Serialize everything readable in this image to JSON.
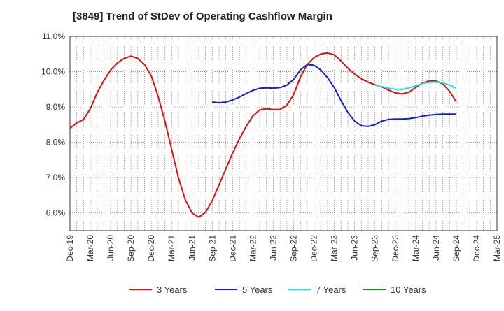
{
  "chart_data": {
    "type": "line",
    "title": "[3849]  Trend of StDev of Operating Cashflow Margin",
    "xlabel": "",
    "ylabel": "",
    "x_ticks": [
      "Dec-19",
      "Mar-20",
      "Jun-20",
      "Sep-20",
      "Dec-20",
      "Mar-21",
      "Jun-21",
      "Sep-21",
      "Dec-21",
      "Mar-22",
      "Jun-22",
      "Sep-22",
      "Dec-22",
      "Mar-23",
      "Jun-23",
      "Sep-23",
      "Dec-23",
      "Mar-24",
      "Jun-24",
      "Sep-24",
      "Dec-24",
      "Mar-25"
    ],
    "y_ticks": [
      "6.0%",
      "7.0%",
      "8.0%",
      "9.0%",
      "10.0%",
      "11.0%"
    ],
    "ylim": [
      5.5,
      11.0
    ],
    "grid": true,
    "legend_position": "bottom",
    "series": [
      {
        "name": "3 Years",
        "color": "#dd1111",
        "points": [
          [
            "Dec-19",
            8.4
          ],
          [
            "Jan-20",
            8.55
          ],
          [
            "Feb-20",
            8.65
          ],
          [
            "Mar-20",
            8.95
          ],
          [
            "Apr-20",
            9.4
          ],
          [
            "May-20",
            9.75
          ],
          [
            "Jun-20",
            10.05
          ],
          [
            "Jul-20",
            10.25
          ],
          [
            "Aug-20",
            10.38
          ],
          [
            "Sep-20",
            10.44
          ],
          [
            "Oct-20",
            10.38
          ],
          [
            "Nov-20",
            10.2
          ],
          [
            "Dec-20",
            9.88
          ],
          [
            "Jan-21",
            9.3
          ],
          [
            "Feb-21",
            8.6
          ],
          [
            "Mar-21",
            7.8
          ],
          [
            "Apr-21",
            7.0
          ],
          [
            "May-21",
            6.38
          ],
          [
            "Jun-21",
            6.0
          ],
          [
            "Jul-21",
            5.88
          ],
          [
            "Aug-21",
            6.02
          ],
          [
            "Sep-21",
            6.35
          ],
          [
            "Oct-21",
            6.8
          ],
          [
            "Nov-21",
            7.25
          ],
          [
            "Dec-21",
            7.7
          ],
          [
            "Jan-22",
            8.1
          ],
          [
            "Feb-22",
            8.45
          ],
          [
            "Mar-22",
            8.75
          ],
          [
            "Apr-22",
            8.92
          ],
          [
            "May-22",
            8.95
          ],
          [
            "Jun-22",
            8.93
          ],
          [
            "Jul-22",
            8.93
          ],
          [
            "Aug-22",
            9.05
          ],
          [
            "Sep-22",
            9.35
          ],
          [
            "Oct-22",
            9.85
          ],
          [
            "Nov-22",
            10.2
          ],
          [
            "Dec-22",
            10.4
          ],
          [
            "Jan-23",
            10.5
          ],
          [
            "Feb-23",
            10.53
          ],
          [
            "Mar-23",
            10.48
          ],
          [
            "Apr-23",
            10.3
          ],
          [
            "May-23",
            10.1
          ],
          [
            "Jun-23",
            9.93
          ],
          [
            "Jul-23",
            9.8
          ],
          [
            "Aug-23",
            9.7
          ],
          [
            "Sep-23",
            9.63
          ],
          [
            "Oct-23",
            9.57
          ],
          [
            "Nov-23",
            9.48
          ],
          [
            "Dec-23",
            9.4
          ],
          [
            "Jan-24",
            9.37
          ],
          [
            "Feb-24",
            9.42
          ],
          [
            "Mar-24",
            9.55
          ],
          [
            "Apr-24",
            9.68
          ],
          [
            "May-24",
            9.74
          ],
          [
            "Jun-24",
            9.74
          ],
          [
            "Jul-24",
            9.65
          ],
          [
            "Aug-24",
            9.45
          ],
          [
            "Sep-24",
            9.15
          ]
        ]
      },
      {
        "name": "5 Years",
        "color": "#1122cc",
        "points": [
          [
            "Sep-21",
            9.14
          ],
          [
            "Oct-21",
            9.12
          ],
          [
            "Nov-21",
            9.14
          ],
          [
            "Dec-21",
            9.2
          ],
          [
            "Jan-22",
            9.28
          ],
          [
            "Feb-22",
            9.38
          ],
          [
            "Mar-22",
            9.47
          ],
          [
            "Apr-22",
            9.53
          ],
          [
            "May-22",
            9.54
          ],
          [
            "Jun-22",
            9.53
          ],
          [
            "Jul-22",
            9.55
          ],
          [
            "Aug-22",
            9.62
          ],
          [
            "Sep-22",
            9.78
          ],
          [
            "Oct-22",
            10.05
          ],
          [
            "Nov-22",
            10.2
          ],
          [
            "Dec-22",
            10.18
          ],
          [
            "Jan-23",
            10.05
          ],
          [
            "Feb-23",
            9.83
          ],
          [
            "Mar-23",
            9.55
          ],
          [
            "Apr-23",
            9.18
          ],
          [
            "May-23",
            8.85
          ],
          [
            "Jun-23",
            8.6
          ],
          [
            "Jul-23",
            8.47
          ],
          [
            "Aug-23",
            8.45
          ],
          [
            "Sep-23",
            8.5
          ],
          [
            "Oct-23",
            8.6
          ],
          [
            "Nov-23",
            8.65
          ],
          [
            "Dec-23",
            8.66
          ],
          [
            "Jan-24",
            8.66
          ],
          [
            "Feb-24",
            8.67
          ],
          [
            "Mar-24",
            8.7
          ],
          [
            "Apr-24",
            8.74
          ],
          [
            "May-24",
            8.77
          ],
          [
            "Jun-24",
            8.79
          ],
          [
            "Jul-24",
            8.8
          ],
          [
            "Aug-24",
            8.8
          ],
          [
            "Sep-24",
            8.8
          ]
        ]
      },
      {
        "name": "7 Years",
        "color": "#22dddd",
        "points": [
          [
            "Sep-23",
            9.62
          ],
          [
            "Oct-23",
            9.58
          ],
          [
            "Nov-23",
            9.53
          ],
          [
            "Dec-23",
            9.5
          ],
          [
            "Jan-24",
            9.5
          ],
          [
            "Feb-24",
            9.54
          ],
          [
            "Mar-24",
            9.6
          ],
          [
            "Apr-24",
            9.66
          ],
          [
            "May-24",
            9.7
          ],
          [
            "Jun-24",
            9.71
          ],
          [
            "Jul-24",
            9.68
          ],
          [
            "Aug-24",
            9.62
          ],
          [
            "Sep-24",
            9.53
          ]
        ]
      },
      {
        "name": "10 Years",
        "color": "#228822",
        "points": []
      }
    ]
  }
}
